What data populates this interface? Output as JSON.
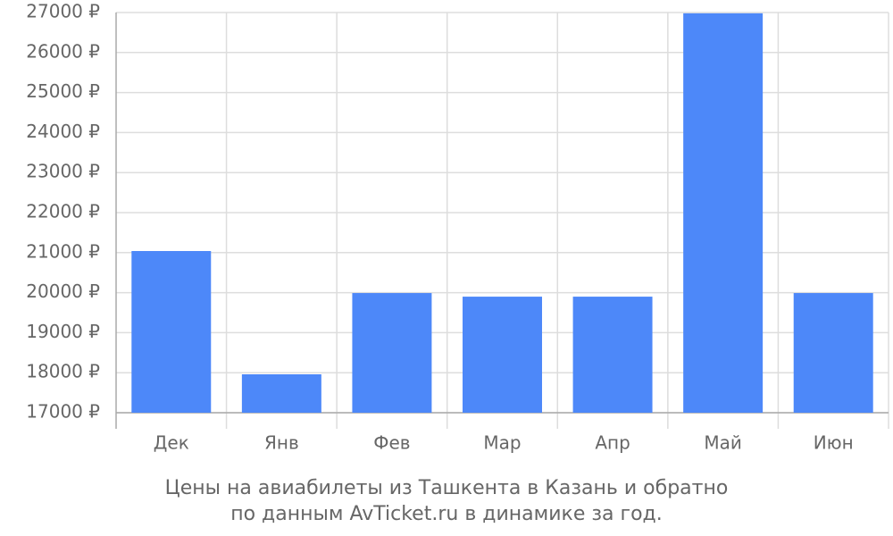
{
  "chart_data": {
    "type": "bar",
    "title": "Цены на авиабилеты из Ташкента в Казань и обратно",
    "subtitle": "по данным AvTicket.ru в динамике за год.",
    "categories": [
      "Дек",
      "Янв",
      "Фев",
      "Мар",
      "Апр",
      "Май",
      "Июн"
    ],
    "values": [
      21040,
      17960,
      19990,
      19900,
      19900,
      26980,
      19990
    ],
    "color": "#4d88f9",
    "ylim": [
      17000,
      27000
    ],
    "yticks": [
      {
        "value": 17000,
        "label": "17000 ₽"
      },
      {
        "value": 18000,
        "label": "18000 ₽"
      },
      {
        "value": 19000,
        "label": "19000 ₽"
      },
      {
        "value": 20000,
        "label": "20000 ₽"
      },
      {
        "value": 21000,
        "label": "21000 ₽"
      },
      {
        "value": 22000,
        "label": "22000 ₽"
      },
      {
        "value": 23000,
        "label": "23000 ₽"
      },
      {
        "value": 24000,
        "label": "24000 ₽"
      },
      {
        "value": 25000,
        "label": "25000 ₽"
      },
      {
        "value": 26000,
        "label": "26000 ₽"
      },
      {
        "value": 27000,
        "label": "27000 ₽"
      }
    ],
    "grid": true
  }
}
